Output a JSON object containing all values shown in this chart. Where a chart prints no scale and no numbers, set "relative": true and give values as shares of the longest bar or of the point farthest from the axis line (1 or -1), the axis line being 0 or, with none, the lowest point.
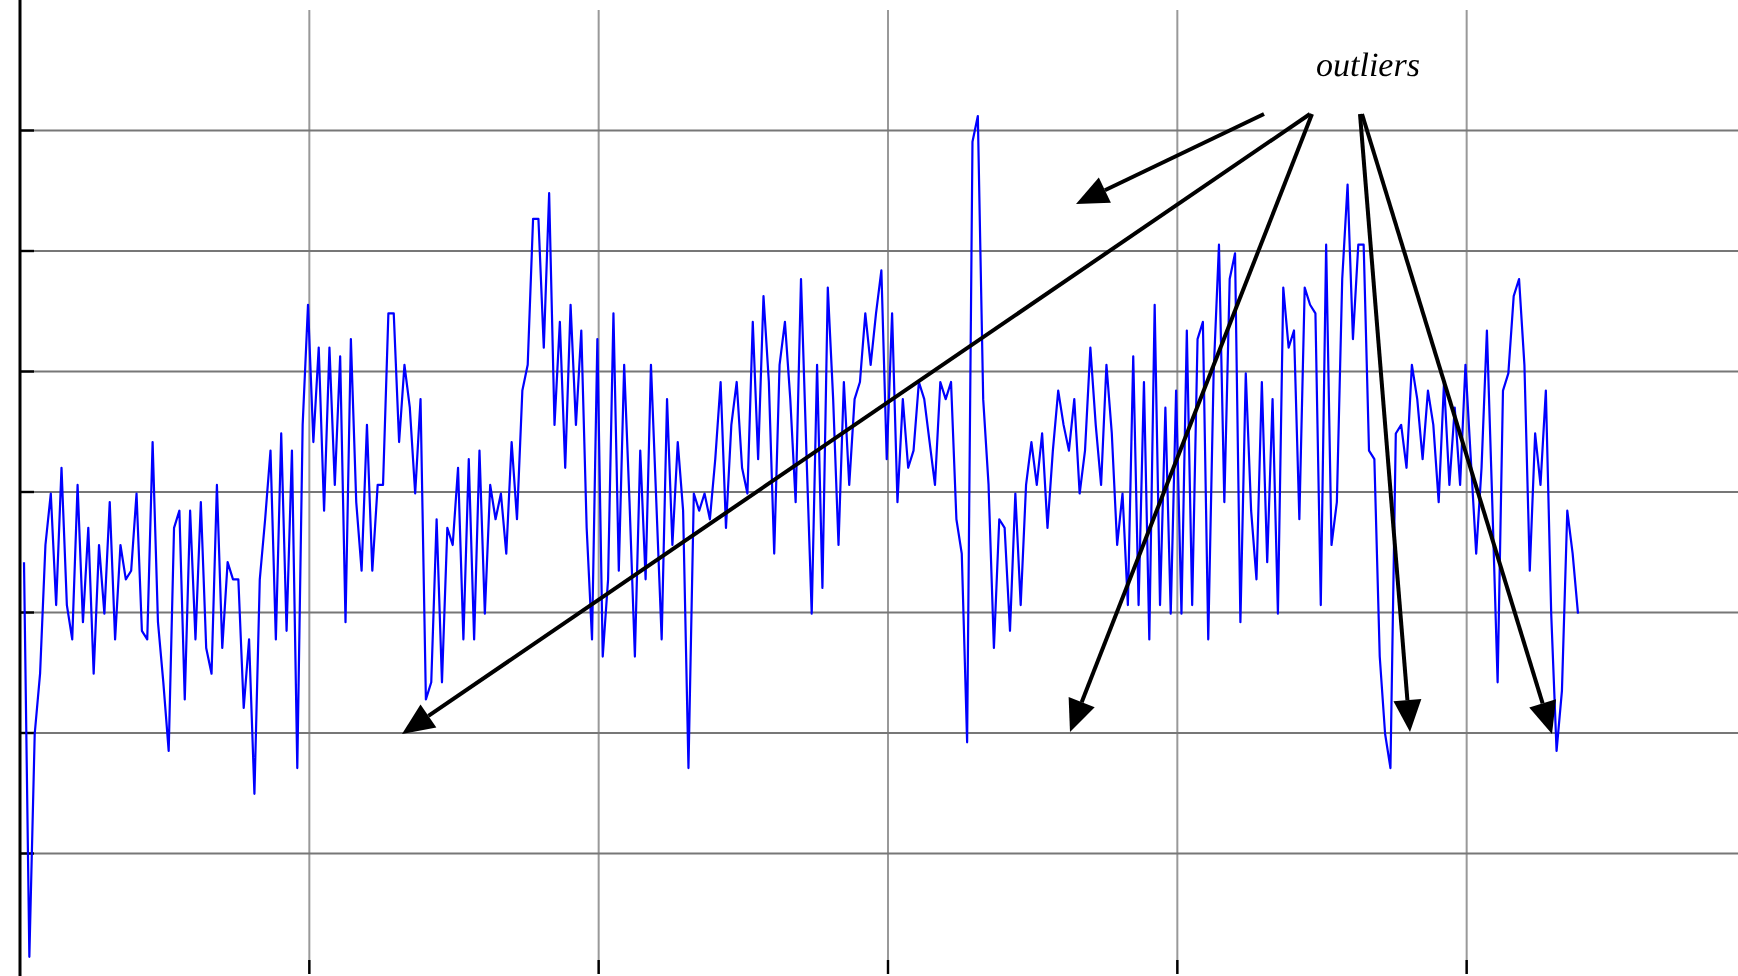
{
  "chart_data": {
    "type": "line",
    "relative": true,
    "grid": true,
    "annotations": [
      "outliers"
    ],
    "categories": [
      null,
      null,
      null,
      null,
      null,
      null,
      null,
      null,
      null,
      null,
      null,
      null,
      null,
      null,
      null,
      null,
      null,
      null,
      null,
      null,
      null,
      null,
      null,
      null,
      null,
      null,
      null,
      null,
      null,
      null,
      null,
      null,
      null,
      null,
      null,
      null,
      null,
      null,
      null,
      null,
      null,
      null,
      null,
      null,
      null,
      null,
      null,
      null,
      null,
      null,
      null,
      null,
      null,
      null,
      null,
      null,
      null,
      null,
      null,
      null,
      null,
      null,
      null,
      null,
      null,
      null,
      null,
      null,
      null,
      null,
      null,
      null,
      null,
      null,
      null,
      null,
      null,
      null,
      null,
      null,
      null,
      null,
      null,
      null,
      null,
      null,
      null,
      null,
      null,
      null,
      null,
      null,
      null,
      null,
      null,
      null,
      null,
      null,
      null,
      null,
      null,
      null,
      null,
      null,
      null,
      null,
      null,
      null,
      null,
      null,
      null,
      null,
      null,
      null,
      null,
      null,
      null,
      null,
      null,
      null,
      null,
      null,
      null,
      null,
      null,
      null,
      null,
      null,
      null,
      null,
      null,
      null,
      null,
      null,
      null,
      null,
      null,
      null,
      null,
      null,
      null,
      null,
      null,
      null,
      null,
      null,
      null,
      null,
      null,
      null,
      null,
      null,
      null,
      null,
      null,
      null,
      null,
      null,
      null,
      null,
      null,
      null,
      null,
      null,
      null,
      null,
      null,
      null,
      null,
      null,
      null,
      null,
      null,
      null,
      null,
      null,
      null,
      null,
      null,
      null,
      null,
      null,
      null,
      null,
      null,
      null,
      null,
      null,
      null,
      null,
      null,
      null,
      null,
      null,
      null,
      null,
      null,
      null,
      null,
      null,
      null,
      null,
      null,
      null,
      null,
      null,
      null,
      null,
      null,
      null,
      null,
      null,
      null,
      null,
      null,
      null,
      null,
      null,
      null,
      null,
      null,
      null,
      null,
      null,
      null,
      null,
      null,
      null,
      null,
      null,
      null,
      null,
      null,
      null,
      null,
      null,
      null,
      null,
      null,
      null,
      null,
      null,
      null,
      null,
      null,
      null,
      null,
      null,
      null,
      null,
      null,
      null,
      null,
      null,
      null,
      null,
      null,
      null,
      null,
      null,
      null,
      null,
      null,
      null,
      null,
      null,
      null,
      null,
      null,
      null,
      null,
      null,
      null,
      null,
      null,
      null,
      null,
      null,
      null,
      null,
      null,
      null,
      null,
      null,
      null,
      null,
      null,
      null,
      null,
      null,
      null
    ],
    "series": [
      {
        "color": "#0000ff",
        "values": [
          0.48,
          0.02,
          0.28,
          0.35,
          0.5,
          0.56,
          0.43,
          0.59,
          0.43,
          0.39,
          0.57,
          0.41,
          0.52,
          0.35,
          0.5,
          0.42,
          0.55,
          0.39,
          0.5,
          0.46,
          0.47,
          0.56,
          0.4,
          0.39,
          0.62,
          0.41,
          0.34,
          0.26,
          0.52,
          0.54,
          0.32,
          0.54,
          0.39,
          0.55,
          0.38,
          0.35,
          0.57,
          0.38,
          0.48,
          0.46,
          0.46,
          0.31,
          0.39,
          0.21,
          0.46,
          0.53,
          0.61,
          0.39,
          0.63,
          0.4,
          0.61,
          0.24,
          0.64,
          0.78,
          0.62,
          0.73,
          0.54,
          0.73,
          0.57,
          0.72,
          0.41,
          0.74,
          0.55,
          0.47,
          0.64,
          0.47,
          0.57,
          0.57,
          0.77,
          0.77,
          0.62,
          0.71,
          0.66,
          0.56,
          0.67,
          0.32,
          0.34,
          0.53,
          0.34,
          0.52,
          0.5,
          0.59,
          0.39,
          0.6,
          0.39,
          0.61,
          0.42,
          0.57,
          0.53,
          0.56,
          0.49,
          0.62,
          0.53,
          0.68,
          0.71,
          0.88,
          0.88,
          0.73,
          0.91,
          0.64,
          0.76,
          0.59,
          0.78,
          0.64,
          0.75,
          0.52,
          0.39,
          0.74,
          0.37,
          0.46,
          0.77,
          0.47,
          0.71,
          0.55,
          0.37,
          0.61,
          0.46,
          0.71,
          0.55,
          0.39,
          0.67,
          0.5,
          0.62,
          0.54,
          0.24,
          0.56,
          0.54,
          0.56,
          0.53,
          0.6,
          0.69,
          0.52,
          0.64,
          0.69,
          0.59,
          0.56,
          0.76,
          0.6,
          0.79,
          0.69,
          0.49,
          0.71,
          0.76,
          0.67,
          0.55,
          0.81,
          0.61,
          0.42,
          0.71,
          0.45,
          0.8,
          0.67,
          0.5,
          0.69,
          0.57,
          0.67,
          0.69,
          0.77,
          0.71,
          0.77,
          0.82,
          0.6,
          0.77,
          0.55,
          0.67,
          0.59,
          0.61,
          0.69,
          0.67,
          0.62,
          0.57,
          0.69,
          0.67,
          0.69,
          0.53,
          0.49,
          0.27,
          0.97,
          1,
          0.67,
          0.57,
          0.38,
          0.53,
          0.52,
          0.4,
          0.56,
          0.43,
          0.57,
          0.62,
          0.57,
          0.63,
          0.52,
          0.61,
          0.68,
          0.64,
          0.61,
          0.67,
          0.56,
          0.61,
          0.73,
          0.64,
          0.57,
          0.71,
          0.63,
          0.5,
          0.56,
          0.43,
          0.72,
          0.43,
          0.69,
          0.39,
          0.78,
          0.43,
          0.66,
          0.42,
          0.68,
          0.42,
          0.75,
          0.43,
          0.74,
          0.76,
          0.39,
          0.7,
          0.85,
          0.55,
          0.81,
          0.84,
          0.41,
          0.7,
          0.54,
          0.46,
          0.69,
          0.48,
          0.67,
          0.42,
          0.8,
          0.73,
          0.75,
          0.53,
          0.8,
          0.78,
          0.77,
          0.43,
          0.85,
          0.5,
          0.55,
          0.81,
          0.92,
          0.74,
          0.85,
          0.85,
          0.61,
          0.6,
          0.37,
          0.28,
          0.24,
          0.63,
          0.64,
          0.59,
          0.71,
          0.67,
          0.6,
          0.68,
          0.64,
          0.55,
          0.69,
          0.57,
          0.66,
          0.57,
          0.71,
          0.6,
          0.49,
          0.59,
          0.75,
          0.55,
          0.34,
          0.68,
          0.7,
          0.79,
          0.81,
          0.71,
          0.47,
          0.63,
          0.57,
          0.68,
          0.42,
          0.26,
          0.33,
          0.54,
          0.49,
          0.42
        ]
      }
    ]
  }
}
